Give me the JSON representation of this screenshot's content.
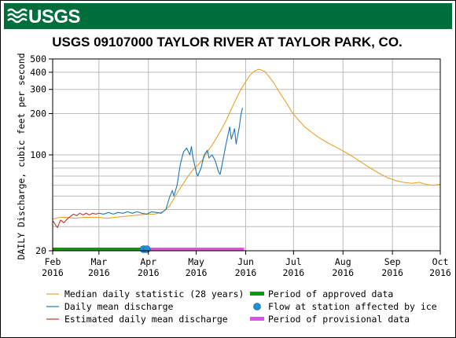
{
  "logo": {
    "text": "USGS"
  },
  "colors": {
    "banner": "#006d3d",
    "median": "#e8a32b",
    "daily_mean": "#1f77b4",
    "estimated": "#c0392b",
    "approved": "#00a000",
    "ice": "#1e90d6",
    "provisional": "#e64ee6"
  },
  "chart_data": {
    "type": "line",
    "title": "USGS 09107000 TAYLOR RIVER AT TAYLOR PARK, CO.",
    "ylabel": "DAILY Discharge, cubic feet per second",
    "xlabel": "",
    "y_scale": "log",
    "ylim": [
      20,
      500
    ],
    "y_ticks": [
      20,
      100,
      200,
      300,
      400,
      500
    ],
    "xlim": [
      "2016-02-01",
      "2016-10-01"
    ],
    "x_ticks": [
      {
        "date": "2016-02-01",
        "month": "Feb",
        "year": "2016"
      },
      {
        "date": "2016-03-01",
        "month": "Mar",
        "year": "2016"
      },
      {
        "date": "2016-04-01",
        "month": "Apr",
        "year": "2016"
      },
      {
        "date": "2016-05-01",
        "month": "May",
        "year": "2016"
      },
      {
        "date": "2016-06-01",
        "month": "Jun",
        "year": "2016"
      },
      {
        "date": "2016-07-01",
        "month": "Jul",
        "year": "2016"
      },
      {
        "date": "2016-08-01",
        "month": "Aug",
        "year": "2016"
      },
      {
        "date": "2016-09-01",
        "month": "Sep",
        "year": "2016"
      },
      {
        "date": "2016-10-01",
        "month": "Oct",
        "year": "2016"
      }
    ],
    "grid": true,
    "series": [
      {
        "name": "Median daily statistic (28 years)",
        "color": "#e8a32b",
        "points": [
          [
            "2016-02-01",
            34
          ],
          [
            "2016-02-05",
            35
          ],
          [
            "2016-02-10",
            35
          ],
          [
            "2016-02-15",
            34.5
          ],
          [
            "2016-02-20",
            35
          ],
          [
            "2016-02-25",
            35
          ],
          [
            "2016-03-01",
            35
          ],
          [
            "2016-03-06",
            34.5
          ],
          [
            "2016-03-11",
            35
          ],
          [
            "2016-03-16",
            35.5
          ],
          [
            "2016-03-21",
            36
          ],
          [
            "2016-03-26",
            36.5
          ],
          [
            "2016-03-31",
            37
          ],
          [
            "2016-04-05",
            37
          ],
          [
            "2016-04-10",
            38.5
          ],
          [
            "2016-04-14",
            42
          ],
          [
            "2016-04-17",
            48
          ],
          [
            "2016-04-20",
            55
          ],
          [
            "2016-04-23",
            62
          ],
          [
            "2016-04-26",
            70
          ],
          [
            "2016-04-29",
            78
          ],
          [
            "2016-05-02",
            84
          ],
          [
            "2016-05-05",
            92
          ],
          [
            "2016-05-08",
            105
          ],
          [
            "2016-05-11",
            118
          ],
          [
            "2016-05-14",
            135
          ],
          [
            "2016-05-17",
            155
          ],
          [
            "2016-05-20",
            180
          ],
          [
            "2016-05-23",
            215
          ],
          [
            "2016-05-26",
            255
          ],
          [
            "2016-05-29",
            300
          ],
          [
            "2016-06-01",
            340
          ],
          [
            "2016-06-03",
            370
          ],
          [
            "2016-06-05",
            395
          ],
          [
            "2016-06-07",
            410
          ],
          [
            "2016-06-09",
            420
          ],
          [
            "2016-06-11",
            415
          ],
          [
            "2016-06-13",
            405
          ],
          [
            "2016-06-15",
            380
          ],
          [
            "2016-06-17",
            355
          ],
          [
            "2016-06-19",
            330
          ],
          [
            "2016-06-21",
            300
          ],
          [
            "2016-06-24",
            265
          ],
          [
            "2016-06-27",
            235
          ],
          [
            "2016-06-30",
            205
          ],
          [
            "2016-07-04",
            180
          ],
          [
            "2016-07-08",
            160
          ],
          [
            "2016-07-12",
            147
          ],
          [
            "2016-07-16",
            136
          ],
          [
            "2016-07-20",
            127
          ],
          [
            "2016-07-25",
            118
          ],
          [
            "2016-07-30",
            110
          ],
          [
            "2016-08-04",
            102
          ],
          [
            "2016-08-09",
            94
          ],
          [
            "2016-08-14",
            86
          ],
          [
            "2016-08-19",
            79
          ],
          [
            "2016-08-24",
            73
          ],
          [
            "2016-08-29",
            68
          ],
          [
            "2016-09-03",
            65
          ],
          [
            "2016-09-08",
            63
          ],
          [
            "2016-09-13",
            62
          ],
          [
            "2016-09-18",
            63
          ],
          [
            "2016-09-22",
            61
          ],
          [
            "2016-09-26",
            60
          ],
          [
            "2016-10-01",
            61
          ]
        ]
      },
      {
        "name": "Daily mean discharge",
        "color": "#1f77b4",
        "points": [
          [
            "2016-03-01",
            37.5
          ],
          [
            "2016-03-04",
            37
          ],
          [
            "2016-03-07",
            38
          ],
          [
            "2016-03-10",
            37
          ],
          [
            "2016-03-13",
            38
          ],
          [
            "2016-03-16",
            37.5
          ],
          [
            "2016-03-19",
            38.5
          ],
          [
            "2016-03-22",
            37.5
          ],
          [
            "2016-03-25",
            38.5
          ],
          [
            "2016-03-28",
            37.5
          ],
          [
            "2016-03-31",
            37
          ],
          [
            "2016-04-03",
            38.5
          ],
          [
            "2016-04-06",
            38
          ],
          [
            "2016-04-09",
            37.5
          ],
          [
            "2016-04-12",
            40
          ],
          [
            "2016-04-14",
            48
          ],
          [
            "2016-04-16",
            55
          ],
          [
            "2016-04-17",
            50
          ],
          [
            "2016-04-19",
            60
          ],
          [
            "2016-04-21",
            85
          ],
          [
            "2016-04-23",
            105
          ],
          [
            "2016-04-25",
            112
          ],
          [
            "2016-04-27",
            100
          ],
          [
            "2016-04-28",
            115
          ],
          [
            "2016-04-29",
            95
          ],
          [
            "2016-05-01",
            75
          ],
          [
            "2016-05-02",
            70
          ],
          [
            "2016-05-04",
            80
          ],
          [
            "2016-05-06",
            100
          ],
          [
            "2016-05-08",
            108
          ],
          [
            "2016-05-09",
            95
          ],
          [
            "2016-05-11",
            100
          ],
          [
            "2016-05-13",
            90
          ],
          [
            "2016-05-15",
            75
          ],
          [
            "2016-05-16",
            72
          ],
          [
            "2016-05-18",
            95
          ],
          [
            "2016-05-20",
            125
          ],
          [
            "2016-05-22",
            160
          ],
          [
            "2016-05-23",
            130
          ],
          [
            "2016-05-25",
            155
          ],
          [
            "2016-05-26",
            120
          ],
          [
            "2016-05-28",
            160
          ],
          [
            "2016-05-29",
            195
          ],
          [
            "2016-05-30",
            220
          ]
        ]
      },
      {
        "name": "Estimated daily mean discharge",
        "color": "#c0392b",
        "points": [
          [
            "2016-02-01",
            33
          ],
          [
            "2016-02-02",
            32
          ],
          [
            "2016-02-03",
            30.5
          ],
          [
            "2016-02-04",
            29.5
          ],
          [
            "2016-02-05",
            31.5
          ],
          [
            "2016-02-06",
            33.5
          ],
          [
            "2016-02-08",
            32
          ],
          [
            "2016-02-10",
            34
          ],
          [
            "2016-02-12",
            35.5
          ],
          [
            "2016-02-14",
            37
          ],
          [
            "2016-02-16",
            36
          ],
          [
            "2016-02-18",
            37.5
          ],
          [
            "2016-02-20",
            36.5
          ],
          [
            "2016-02-22",
            37.5
          ],
          [
            "2016-02-24",
            36.5
          ],
          [
            "2016-02-26",
            37.5
          ],
          [
            "2016-02-28",
            37
          ],
          [
            "2016-03-01",
            37.5
          ]
        ]
      }
    ],
    "periods": [
      {
        "name": "Period of approved data",
        "color": "#00a000",
        "start": "2016-02-01",
        "end": "2016-04-01"
      },
      {
        "name": "Period of provisional data",
        "color": "#e64ee6",
        "start": "2016-04-01",
        "end": "2016-05-31"
      }
    ],
    "ice_markers": [
      {
        "name": "Flow at station affected by ice",
        "color": "#1e90d6",
        "dates": [
          "2016-03-29",
          "2016-03-31"
        ]
      }
    ],
    "legend": {
      "placement": "bottom",
      "entries": [
        {
          "label": "Median daily statistic (28 years)",
          "color": "#e8a32b",
          "kind": "line"
        },
        {
          "label": "Period of approved data",
          "color": "#00a000",
          "kind": "bar"
        },
        {
          "label": "Daily mean discharge",
          "color": "#1f77b4",
          "kind": "line"
        },
        {
          "label": "Flow at station affected by ice",
          "color": "#1e90d6",
          "kind": "dot"
        },
        {
          "label": "Estimated daily mean discharge",
          "color": "#c0392b",
          "kind": "line"
        },
        {
          "label": "Period of provisional data",
          "color": "#e64ee6",
          "kind": "bar"
        }
      ]
    }
  }
}
